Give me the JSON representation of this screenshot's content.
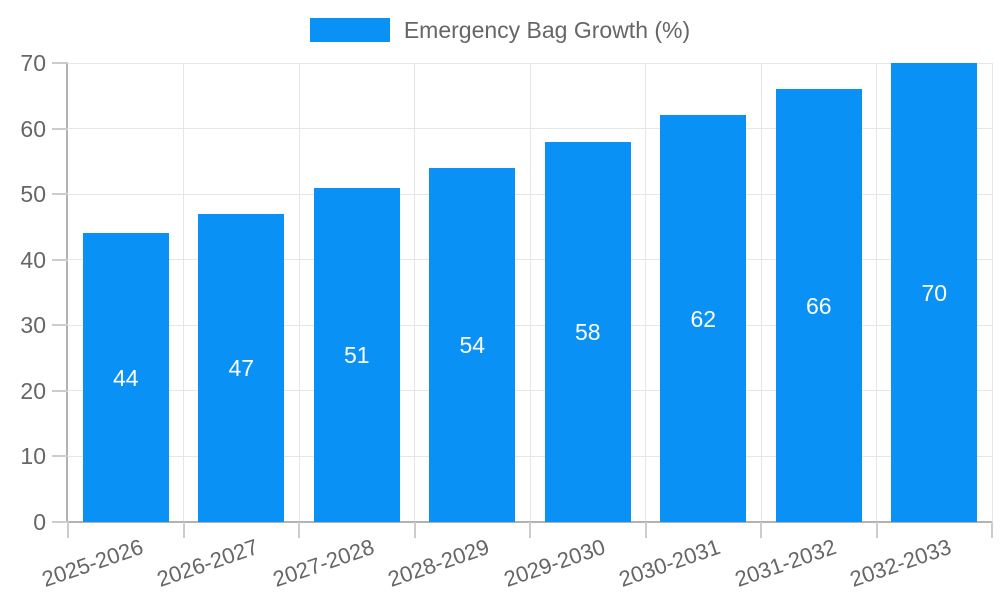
{
  "legend": {
    "label": "Emergency Bag Growth (%)"
  },
  "colors": {
    "bar": "#0a91f5",
    "grid": "#e6e6e6",
    "axis_border": "#b2b2b2",
    "tick_mark": "#cccccc",
    "axis_text": "#666666",
    "bar_label_text": "#ffffff",
    "background": "#ffffff"
  },
  "chart_data": {
    "type": "bar",
    "title": "Emergency Bag Growth (%)",
    "categories": [
      "2025-2026",
      "2026-2027",
      "2027-2028",
      "2028-2029",
      "2029-2030",
      "2030-2031",
      "2031-2032",
      "2032-2033"
    ],
    "values": [
      44,
      47,
      51,
      54,
      58,
      62,
      66,
      70
    ],
    "xlabel": "",
    "ylabel": "",
    "ylim": [
      0,
      70
    ],
    "ytick_step": 10,
    "ytick_labels": [
      "0",
      "10",
      "20",
      "30",
      "40",
      "50",
      "60",
      "70"
    ],
    "grid": true,
    "legend_position": "top",
    "bar_label_position": "center"
  }
}
